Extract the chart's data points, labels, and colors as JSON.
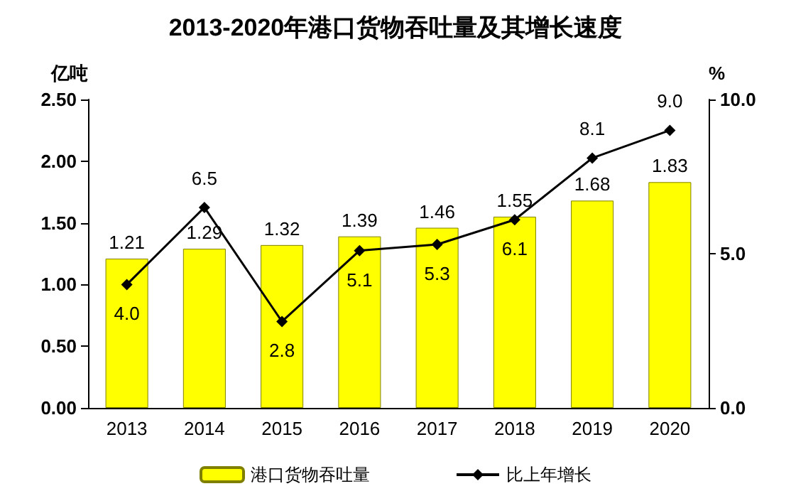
{
  "chart_data": {
    "type": "bar",
    "title": "2013-2020年港口货物吞吐量及其增长速度",
    "ylabel": "亿吨",
    "y2label": "%",
    "categories": [
      "2013",
      "2014",
      "2015",
      "2016",
      "2017",
      "2018",
      "2019",
      "2020"
    ],
    "series": [
      {
        "name": "港口货物吞吐量",
        "color": "#ffff00",
        "values": [
          1.21,
          1.29,
          1.32,
          1.39,
          1.46,
          1.55,
          1.68,
          1.83
        ],
        "value_labels": [
          "1.21",
          "1.29",
          "1.32",
          "1.39",
          "1.46",
          "1.55",
          "1.68",
          "1.83"
        ]
      },
      {
        "name": "比上年增长",
        "type": "line",
        "axis": "y2",
        "color": "#000000",
        "marker": "diamond",
        "values": [
          4.0,
          6.5,
          2.8,
          5.1,
          5.3,
          6.1,
          8.1,
          9.0
        ],
        "value_labels": [
          "4.0",
          "6.5",
          "2.8",
          "5.1",
          "5.3",
          "6.1",
          "8.1",
          "9.0"
        ]
      }
    ],
    "ylim": [
      0,
      2.5
    ],
    "yticks": [
      {
        "value": 0,
        "label": "0.00"
      },
      {
        "value": 0.5,
        "label": "0.50"
      },
      {
        "value": 1,
        "label": "1.00"
      },
      {
        "value": 1.5,
        "label": "1.50"
      },
      {
        "value": 2,
        "label": "2.00"
      },
      {
        "value": 2.5,
        "label": "2.50"
      }
    ],
    "y2lim": [
      0,
      10
    ],
    "y2ticks": [
      {
        "value": 0,
        "label": "0.0"
      },
      {
        "value": 5,
        "label": "5.0"
      },
      {
        "value": 10,
        "label": "10.0"
      }
    ],
    "grid": false,
    "legend": "bottom"
  }
}
